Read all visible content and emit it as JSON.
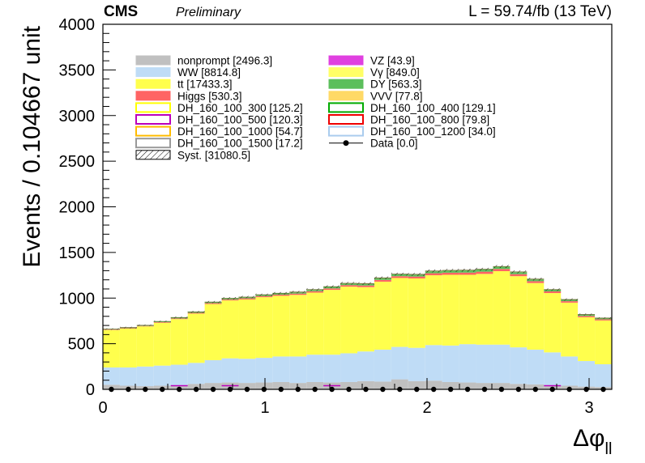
{
  "chart_data": {
    "type": "bar",
    "stacked": true,
    "header": {
      "experiment": "CMS",
      "status": "Preliminary",
      "lumi": "L = 59.74/fb (13 TeV)"
    },
    "ylabel": "Events / 0.104667 unit",
    "xlabel_main": "Δφ",
    "xlabel_sub": "ll",
    "xlim": [
      0,
      3.14
    ],
    "ylim": [
      0,
      4000
    ],
    "xticks": [
      0,
      1,
      2,
      3
    ],
    "yticks": [
      0,
      500,
      1000,
      1500,
      2000,
      2500,
      3000,
      3500,
      4000
    ],
    "bin_width": 0.104667,
    "bins": 30,
    "legend_placement": "top-left",
    "legend_left": [
      {
        "label": "nonprompt [2496.3]",
        "color": "#c0c0c0",
        "style": "fill"
      },
      {
        "label": "WW [8814.8]",
        "color": "#bfdcf6",
        "style": "fill"
      },
      {
        "label": "tt [17433.3]",
        "color": "#ffff4d",
        "style": "fill"
      },
      {
        "label": "Higgs [530.3]",
        "color": "#ff6464",
        "style": "fill"
      },
      {
        "label": "DH_160_100_300 [125.2]",
        "color": "#ffff00",
        "style": "line"
      },
      {
        "label": "DH_160_100_500 [120.3]",
        "color": "#bb00bb",
        "style": "line"
      },
      {
        "label": "DH_160_100_1000 [54.7]",
        "color": "#ffbb00",
        "style": "line"
      },
      {
        "label": "DH_160_100_1500 [17.2]",
        "color": "#999999",
        "style": "line"
      },
      {
        "label": "Syst. [31080.5]",
        "color": "#000000",
        "style": "hatch"
      }
    ],
    "legend_right": [
      {
        "label": "VZ [43.9]",
        "color": "#e040e0",
        "style": "fill"
      },
      {
        "label": "Vγ [849.0]",
        "color": "#ffff66",
        "style": "fill"
      },
      {
        "label": "DY [563.3]",
        "color": "#5cbf5c",
        "style": "fill"
      },
      {
        "label": "VVV [77.8]",
        "color": "#ffd966",
        "style": "fill"
      },
      {
        "label": "DH_160_100_400 [129.1]",
        "color": "#00aa00",
        "style": "line"
      },
      {
        "label": "DH_160_100_800 [79.8]",
        "color": "#ee0000",
        "style": "line"
      },
      {
        "label": "DH_160_100_1200 [34.0]",
        "color": "#aaccee",
        "style": "line"
      },
      {
        "label": "Data [0.0]",
        "color": "#000000",
        "style": "marker"
      }
    ],
    "series": [
      {
        "name": "nonprompt",
        "color": "#c0c0c0",
        "values": [
          50,
          40,
          35,
          40,
          45,
          60,
          70,
          75,
          70,
          75,
          80,
          70,
          80,
          75,
          80,
          90,
          85,
          110,
          90,
          95,
          80,
          75,
          70,
          70,
          60,
          55,
          45,
          40,
          30,
          25
        ]
      },
      {
        "name": "WW",
        "color": "#bfdcf6",
        "values": [
          190,
          200,
          215,
          220,
          225,
          230,
          250,
          265,
          265,
          270,
          280,
          290,
          300,
          305,
          315,
          325,
          350,
          355,
          365,
          390,
          400,
          420,
          420,
          420,
          400,
          380,
          360,
          320,
          280,
          250
        ]
      },
      {
        "name": "tt",
        "color": "#ffff4d",
        "values": [
          410,
          425,
          440,
          470,
          500,
          540,
          615,
          635,
          650,
          665,
          665,
          675,
          680,
          710,
          730,
          705,
          745,
          755,
          760,
          765,
          775,
          760,
          775,
          805,
          780,
          730,
          650,
          590,
          480,
          480
        ]
      },
      {
        "name": "Higgs",
        "color": "#ff6464",
        "values": [
          5,
          5,
          5,
          6,
          7,
          8,
          10,
          10,
          12,
          12,
          13,
          14,
          15,
          16,
          17,
          18,
          19,
          20,
          21,
          22,
          23,
          24,
          24,
          24,
          22,
          20,
          18,
          16,
          14,
          12
        ]
      },
      {
        "name": "DY",
        "color": "#5cbf5c",
        "values": [
          5,
          6,
          6,
          7,
          8,
          9,
          10,
          11,
          12,
          12,
          13,
          14,
          15,
          16,
          17,
          18,
          19,
          20,
          21,
          22,
          23,
          24,
          24,
          24,
          22,
          20,
          18,
          16,
          14,
          12
        ]
      },
      {
        "name": "VVV",
        "color": "#ffd966",
        "values": [
          1,
          1,
          1,
          1,
          2,
          2,
          2,
          2,
          2,
          2,
          2,
          3,
          3,
          3,
          3,
          3,
          3,
          3,
          3,
          3,
          3,
          3,
          3,
          3,
          3,
          3,
          2,
          2,
          2,
          2
        ]
      }
    ],
    "signals": [
      {
        "name": "DH_160_100_500",
        "color": "#bb00bb",
        "bins": [
          4,
          7,
          13,
          26
        ]
      }
    ],
    "data": {
      "name": "Data",
      "values": [
        0,
        0,
        0,
        0,
        0,
        0,
        0,
        0,
        0,
        0,
        0,
        0,
        0,
        0,
        0,
        0,
        0,
        0,
        0,
        0,
        0,
        0,
        0,
        0,
        0,
        0,
        0,
        0,
        0,
        0
      ]
    }
  }
}
